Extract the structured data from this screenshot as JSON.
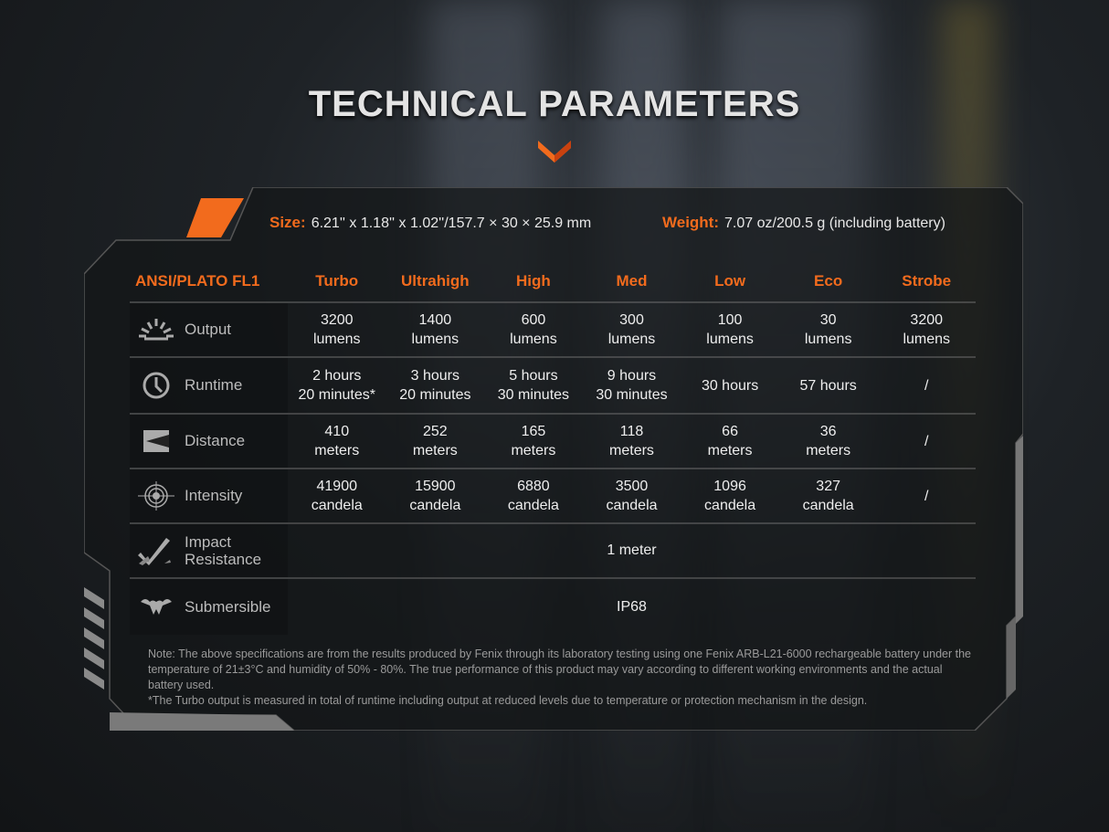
{
  "title": "TECHNICAL PARAMETERS",
  "size": {
    "label": "Size:",
    "value": "6.21'' x 1.18'' x 1.02''/157.7 × 30 × 25.9 mm"
  },
  "weight": {
    "label": "Weight:",
    "value": "7.07 oz/200.5 g (including battery)"
  },
  "table": {
    "header_label": "ANSI/PLATO FL1",
    "modes": [
      "Turbo",
      "Ultrahigh",
      "High",
      "Med",
      "Low",
      "Eco",
      "Strobe"
    ],
    "rows": [
      {
        "label": "Output",
        "icon": "sun-rays-icon",
        "values": [
          [
            "3200",
            "lumens"
          ],
          [
            "1400",
            "lumens"
          ],
          [
            "600",
            "lumens"
          ],
          [
            "300",
            "lumens"
          ],
          [
            "100",
            "lumens"
          ],
          [
            "30",
            "lumens"
          ],
          [
            "3200",
            "lumens"
          ]
        ]
      },
      {
        "label": "Runtime",
        "icon": "clock-icon",
        "values": [
          [
            "2 hours",
            "20 minutes*"
          ],
          [
            "3 hours",
            "20 minutes"
          ],
          [
            "5 hours",
            "30 minutes"
          ],
          [
            "9 hours",
            "30 minutes"
          ],
          [
            "30 hours",
            ""
          ],
          [
            "57 hours",
            ""
          ],
          [
            "/",
            ""
          ]
        ]
      },
      {
        "label": "Distance",
        "icon": "beam-distance-icon",
        "values": [
          [
            "410",
            "meters"
          ],
          [
            "252",
            "meters"
          ],
          [
            "165",
            "meters"
          ],
          [
            "118",
            "meters"
          ],
          [
            "66",
            "meters"
          ],
          [
            "36",
            "meters"
          ],
          [
            "/",
            ""
          ]
        ]
      },
      {
        "label": "Intensity",
        "icon": "target-icon",
        "values": [
          [
            "41900",
            "candela"
          ],
          [
            "15900",
            "candela"
          ],
          [
            "6880",
            "candela"
          ],
          [
            "3500",
            "candela"
          ],
          [
            "1096",
            "candela"
          ],
          [
            "327",
            "candela"
          ],
          [
            "/",
            ""
          ]
        ]
      }
    ],
    "impact": {
      "label_1": "Impact",
      "label_2": "Resistance",
      "icon": "impact-check-icon",
      "value": "1 meter"
    },
    "submersible": {
      "label": "Submersible",
      "icon": "water-drop-icon",
      "value": "IP68"
    }
  },
  "note": {
    "line1": "Note: The above specifications are from the results produced by Fenix through its laboratory testing using one Fenix ARB-L21-6000 rechargeable battery under the temperature of 21±3°C and humidity of 50% - 80%. The true performance of this product may vary according to different working environments and the actual battery used.",
    "line2": "*The Turbo output is measured in total of runtime including output at reduced levels due to temperature or protection mechanism in the design."
  },
  "colors": {
    "accent": "#f26b1d"
  }
}
